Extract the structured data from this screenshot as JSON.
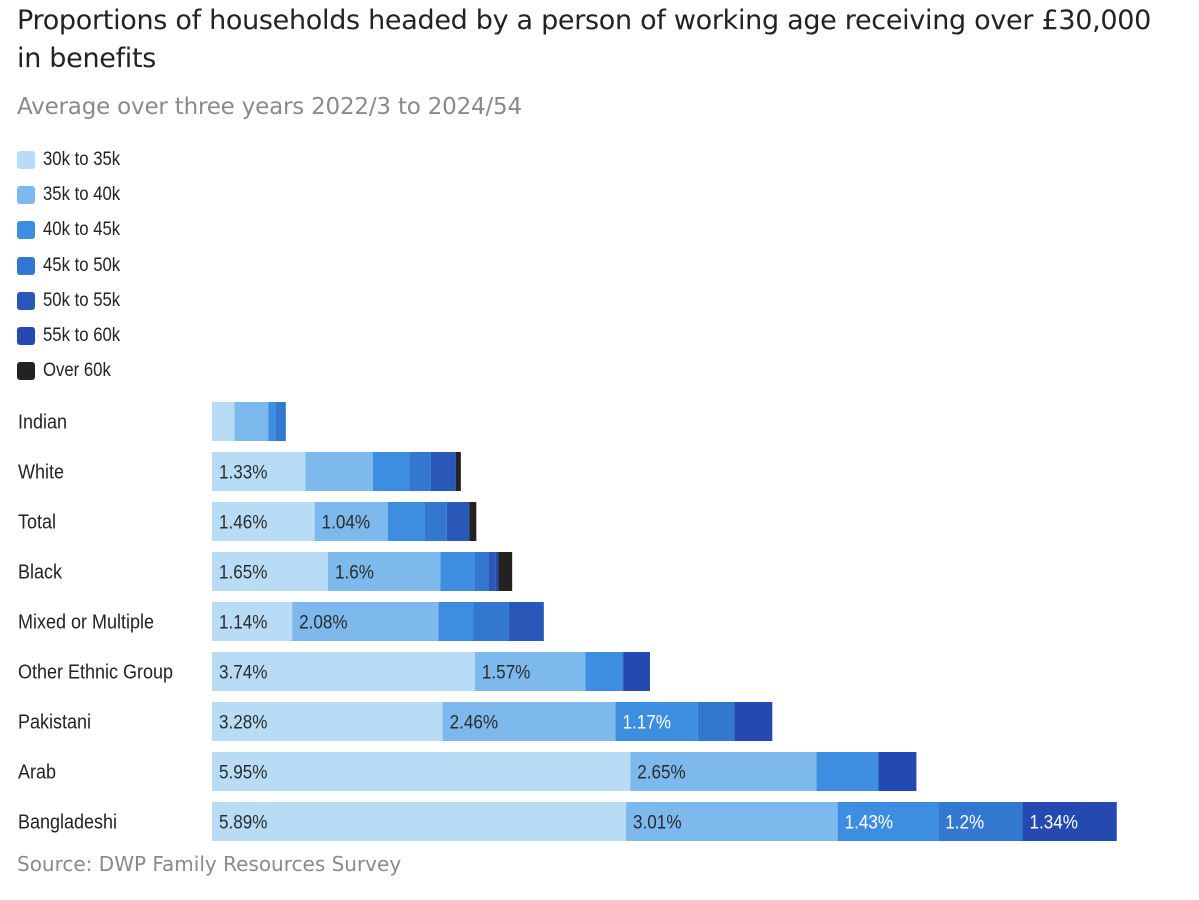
{
  "title": "Proportions of households headed by a person of working age receiving over £30,000 in benefits",
  "subtitle": "Average over three years 2022/3 to 2024/54",
  "source": "Source: DWP Family Resources Survey",
  "colors": [
    "#b9dcf6",
    "#7db9ec",
    "#3d8ee0",
    "#3378d0",
    "#2a58b8",
    "#2449b0",
    "#222222"
  ],
  "chart_data": {
    "type": "bar",
    "orientation": "horizontal",
    "stacked": true,
    "legend": [
      "30k to 35k",
      "35k to 40k",
      "40k to 45k",
      "45k to 50k",
      "50k to 55k",
      "55k to 60k",
      "Over 60k"
    ],
    "legend_position": "top-left",
    "categories": [
      "Indian",
      "White",
      "Total",
      "Black",
      "Mixed or Multiple",
      "Other Ethnic Group",
      "Pakistani",
      "Arab",
      "Bangladeshi"
    ],
    "series": [
      {
        "name": "30k to 35k",
        "values": [
          0.32,
          1.33,
          1.46,
          1.65,
          1.14,
          3.74,
          3.28,
          5.95,
          5.89
        ]
      },
      {
        "name": "35k to 40k",
        "values": [
          0.48,
          0.96,
          1.04,
          1.6,
          2.08,
          1.57,
          2.46,
          2.65,
          3.01
        ]
      },
      {
        "name": "40k to 45k",
        "values": [
          0.1,
          0.52,
          0.52,
          0.48,
          0.5,
          0.52,
          1.17,
          0.88,
          1.43
        ]
      },
      {
        "name": "45k to 50k",
        "values": [
          0.15,
          0.3,
          0.32,
          0.2,
          0.5,
          0.02,
          0.52,
          0.0,
          1.2
        ]
      },
      {
        "name": "50k to 55k",
        "values": [
          0.0,
          0.36,
          0.32,
          0.1,
          0.5,
          0.0,
          0.0,
          0.0,
          0.0
        ]
      },
      {
        "name": "55k to 60k",
        "values": [
          0.0,
          0.0,
          0.0,
          0.04,
          0.0,
          0.38,
          0.54,
          0.54,
          1.34
        ]
      },
      {
        "name": "Over 60k",
        "values": [
          0.0,
          0.07,
          0.1,
          0.2,
          0.0,
          0.0,
          0.0,
          0.0,
          0.0
        ]
      }
    ],
    "data_labels": [
      [
        null,
        null,
        null,
        null,
        null,
        null,
        null
      ],
      [
        "1.33%",
        null,
        null,
        null,
        null,
        null,
        null
      ],
      [
        "1.46%",
        "1.04%",
        null,
        null,
        null,
        null,
        null
      ],
      [
        "1.65%",
        "1.6%",
        null,
        null,
        null,
        null,
        null
      ],
      [
        "1.14%",
        "2.08%",
        null,
        null,
        null,
        null,
        null
      ],
      [
        "3.74%",
        "1.57%",
        null,
        null,
        null,
        null,
        null
      ],
      [
        "3.28%",
        "2.46%",
        "1.17%",
        null,
        null,
        null,
        null
      ],
      [
        "5.95%",
        "2.65%",
        null,
        null,
        null,
        null,
        null
      ],
      [
        "5.89%",
        "3.01%",
        "1.43%",
        "1.2%",
        null,
        "1.34%",
        null
      ]
    ],
    "grid": false,
    "xaxis_visible": false
  }
}
